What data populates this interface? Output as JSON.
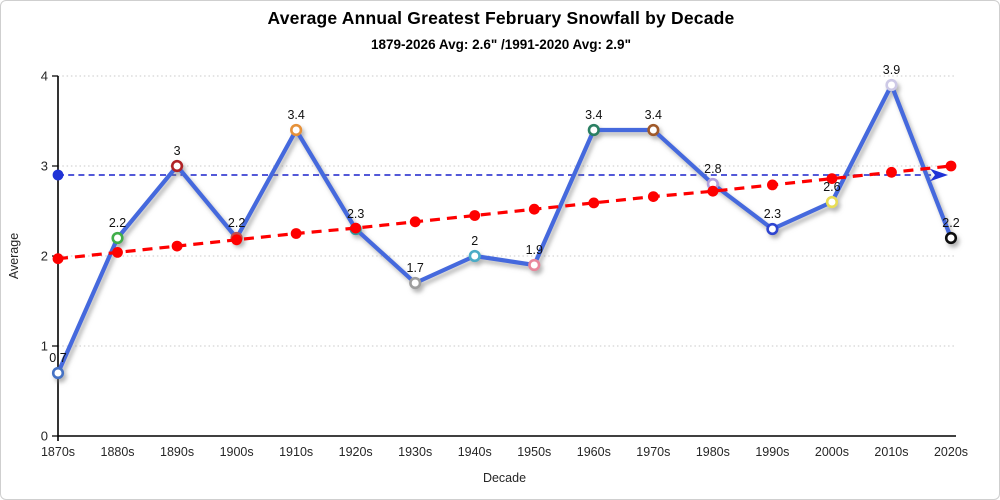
{
  "chart": {
    "title": "Average Annual Greatest February Snowfall by Decade",
    "subtitle": "1879-2026 Avg: 2.6\" /1991-2020 Avg: 2.9\"",
    "xlabel": "Decade",
    "ylabel": "Average"
  },
  "chart_data": {
    "type": "line",
    "title": "Average Annual Greatest February Snowfall by Decade",
    "subtitle": "1879-2026 Avg: 2.6\" /1991-2020 Avg: 2.9\"",
    "xlabel": "Decade",
    "ylabel": "Average",
    "ylim": [
      0,
      4
    ],
    "yticks": [
      "0",
      "1",
      "2",
      "3",
      "4"
    ],
    "grid": "horizontal-dotted",
    "legend": "none",
    "categories": [
      "1870s",
      "1880s",
      "1890s",
      "1900s",
      "1910s",
      "1920s",
      "1930s",
      "1940s",
      "1950s",
      "1960s",
      "1970s",
      "1980s",
      "1990s",
      "2000s",
      "2010s",
      "2020s"
    ],
    "series": [
      {
        "name": "average-annual-greatest-snowfall",
        "values": [
          0.7,
          2.2,
          3,
          2.2,
          3.4,
          2.3,
          1.7,
          2,
          1.9,
          3.4,
          3.4,
          2.8,
          2.3,
          2.6,
          3.9,
          2.2
        ],
        "labels": [
          "0.7",
          "2.2",
          "3",
          "2.2",
          "3.4",
          "2.3",
          "1.7",
          "2",
          "1.9",
          "3.4",
          "3.4",
          "2.8",
          "2.3",
          "2.6",
          "3.9",
          "2.2"
        ],
        "color": "#4569dd",
        "marker_colors": [
          "#4472c4",
          "#3fae49",
          "#b02428",
          "#c0504d",
          "#e69138",
          "#2e9e9e",
          "#9e9e9e",
          "#4bacc6",
          "#e8889c",
          "#2a7f62",
          "#a05a2c",
          "#b1a0dc",
          "#2f45d0",
          "#e8dc55",
          "#cdc9e6",
          "#111111"
        ]
      },
      {
        "name": "linear-trend",
        "values": [
          1.97,
          2.04,
          2.11,
          2.18,
          2.25,
          2.31,
          2.38,
          2.45,
          2.52,
          2.59,
          2.66,
          2.72,
          2.79,
          2.86,
          2.93,
          3.0
        ],
        "color": "#fe0000",
        "style": "dashed"
      },
      {
        "name": "avg-1991-2020-reference",
        "value": 2.9,
        "color": "#1a22cc",
        "style": "dashed-arrow"
      }
    ],
    "colors": {
      "gridline": "#c9c9c9",
      "axis": "#000000",
      "tick_label": "#262626",
      "data_label": "#111111"
    }
  }
}
